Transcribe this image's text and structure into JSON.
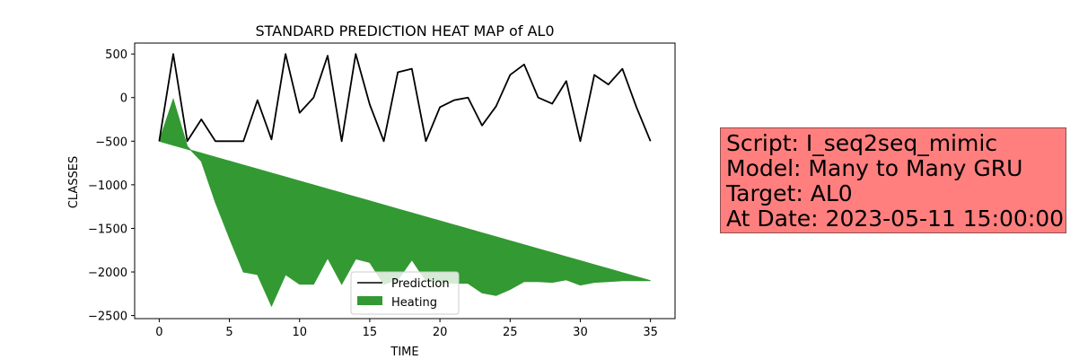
{
  "chart_data": {
    "type": "line",
    "title": "STANDARD PREDICTION HEAT MAP of AL0",
    "xlabel": "TIME",
    "ylabel": "CLASSES",
    "xlim": [
      -1.75,
      36.75
    ],
    "ylim": [
      -2535,
      625
    ],
    "xticks": [
      0,
      5,
      10,
      15,
      20,
      25,
      30,
      35
    ],
    "yticks": [
      500,
      0,
      -500,
      -1000,
      -1500,
      -2000,
      -2500
    ],
    "xtick_labels": [
      "0",
      "5",
      "10",
      "15",
      "20",
      "25",
      "30",
      "35"
    ],
    "ytick_labels": [
      "500",
      "0",
      "−500",
      "−1000",
      "−1500",
      "−2000",
      "−2500"
    ],
    "grid": false,
    "legend_position": "bottom-center",
    "x": [
      0,
      1,
      2,
      3,
      4,
      5,
      6,
      7,
      8,
      9,
      10,
      11,
      12,
      13,
      14,
      15,
      16,
      17,
      18,
      19,
      20,
      21,
      22,
      23,
      24,
      25,
      26,
      27,
      28,
      29,
      30,
      31,
      32,
      33,
      34,
      35
    ],
    "series": [
      {
        "name": "Prediction",
        "kind": "line",
        "color": "#000000",
        "values": [
          -500,
          500,
          -500,
          -250,
          -500,
          -500,
          -500,
          -30,
          -480,
          500,
          -175,
          0,
          480,
          -500,
          500,
          -80,
          -500,
          290,
          330,
          -500,
          -110,
          -30,
          0,
          -320,
          -100,
          260,
          380,
          0,
          -70,
          190,
          -500,
          260,
          150,
          330,
          -110,
          -500
        ]
      },
      {
        "name": "Heating",
        "kind": "fill_between",
        "color": "#339933",
        "lower": [
          -500,
          -20,
          -560,
          -730,
          -1200,
          -1610,
          -2000,
          -2030,
          -2390,
          -2030,
          -2140,
          -2140,
          -1840,
          -2140,
          -1850,
          -1890,
          -2140,
          -2090,
          -1860,
          -2100,
          -2120,
          -2130,
          -2130,
          -2240,
          -2270,
          -2200,
          -2110,
          -2110,
          -2120,
          -2090,
          -2150,
          -2120,
          -2110,
          -2100,
          -2100,
          -2100
        ],
        "upper_start": -500,
        "upper_end": -2100
      }
    ]
  },
  "legend": {
    "items": [
      {
        "label": "Prediction",
        "color": "#000000"
      },
      {
        "label": "Heating",
        "color": "#339933"
      }
    ]
  },
  "info_box": {
    "lines": [
      "Script: I_seq2seq_mimic",
      "Model: Many to Many GRU",
      "Target: AL0",
      "At Date: 2023-05-11 15:00:00"
    ],
    "background": "#ff7f7f"
  }
}
